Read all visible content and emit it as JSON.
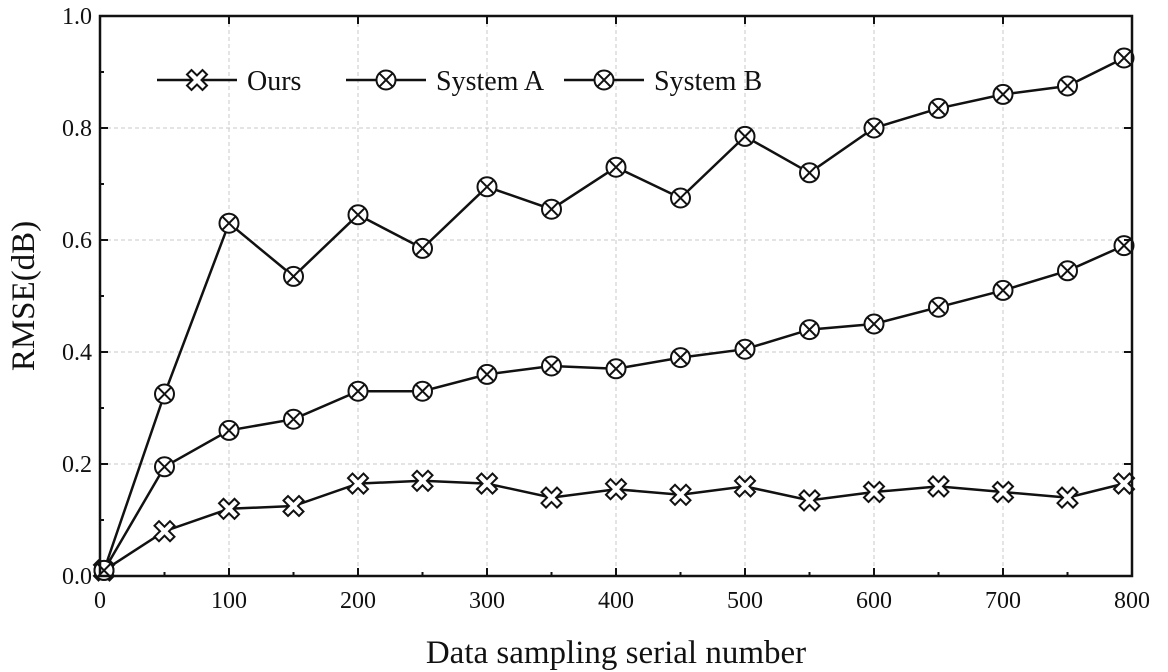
{
  "chart_data": {
    "type": "line",
    "xlabel": "Data sampling serial number",
    "ylabel": "RMSE(dB)",
    "xlim": [
      0,
      800
    ],
    "ylim": [
      0.0,
      1.0
    ],
    "xticks": [
      "0",
      "100",
      "200",
      "300",
      "400",
      "500",
      "600",
      "700",
      "800"
    ],
    "yticks": [
      "0.0",
      "0.2",
      "0.4",
      "0.6",
      "0.8",
      "1.0"
    ],
    "grid": true,
    "legend_position": "top-left",
    "x": [
      0,
      50,
      100,
      150,
      200,
      250,
      300,
      350,
      400,
      450,
      500,
      550,
      600,
      650,
      700,
      750,
      800
    ],
    "series": [
      {
        "name": "Ours",
        "marker": "x-cross",
        "values": [
          0.01,
          0.08,
          0.12,
          0.125,
          0.165,
          0.17,
          0.165,
          0.14,
          0.155,
          0.145,
          0.16,
          0.135,
          0.15,
          0.16,
          0.15,
          0.14,
          0.165
        ]
      },
      {
        "name": "System A",
        "marker": "circle-x",
        "values": [
          0.01,
          0.195,
          0.26,
          0.28,
          0.33,
          0.33,
          0.36,
          0.375,
          0.37,
          0.39,
          0.405,
          0.44,
          0.45,
          0.48,
          0.51,
          0.545,
          0.59
        ]
      },
      {
        "name": "System B",
        "marker": "circle-x",
        "values": [
          0.01,
          0.325,
          0.63,
          0.535,
          0.645,
          0.585,
          0.695,
          0.655,
          0.73,
          0.675,
          0.785,
          0.72,
          0.8,
          0.835,
          0.86,
          0.875,
          0.925
        ]
      }
    ]
  }
}
